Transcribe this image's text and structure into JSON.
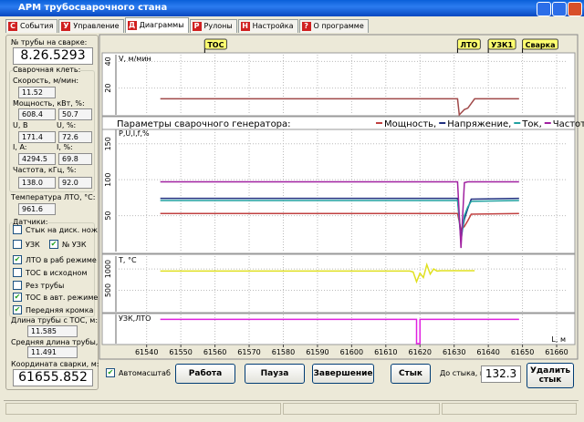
{
  "window": {
    "title": "АРМ трубосварочного стана"
  },
  "tabs": [
    {
      "icon": "С",
      "label": "События"
    },
    {
      "icon": "У",
      "label": "Управление"
    },
    {
      "icon": "Д",
      "label": "Диаграммы",
      "active": true
    },
    {
      "icon": "Р",
      "label": "Рулоны"
    },
    {
      "icon": "Н",
      "label": "Настройка"
    },
    {
      "icon": "?",
      "label": "О программе"
    }
  ],
  "left_panel": {
    "pipe_label": "№ трубы на сварке:",
    "pipe_number": "8.26.5293",
    "stand": {
      "title": "Сварочная клеть:",
      "speed_label": "Скорость, м/мин:",
      "speed": "11.52",
      "power_label": "Мощность, кВт, %:",
      "power": "608.4",
      "power_pct": "50.7",
      "u_label": "U, В",
      "u_pct_label": "U, %:",
      "u": "171.4",
      "u_pct": "72.6",
      "i_label": "I, A:",
      "i_pct_label": "I, %:",
      "i": "4294.5",
      "i_pct": "69.8",
      "freq_label": "Частота, кГц, %:",
      "freq": "138.0",
      "freq_pct": "92.0"
    },
    "temp_label": "Температура ЛТО, °С:",
    "temp": "961.6",
    "sensors": {
      "title": "Датчики:",
      "items": [
        {
          "label": "Стык на диск. нож",
          "checked": false
        },
        {
          "label": "УЗК",
          "checked": false
        },
        {
          "label": "№ УЗК",
          "checked": true
        },
        {
          "label": "ЛТО в раб режиме",
          "checked": true
        },
        {
          "label": "ТОС в исходном",
          "checked": false
        },
        {
          "label": "Рез трубы",
          "checked": false
        },
        {
          "label": "ТОС в авт. режиме",
          "checked": true
        },
        {
          "label": "Передняя кромка",
          "checked": true
        }
      ]
    },
    "length_label": "Длина трубы с ТОС, м:",
    "length": "11.585",
    "avg_label": "Средняя длина трубы, м:",
    "avg": "11.491",
    "coord_label": "Координата сварки, м:",
    "coord": "61655.852"
  },
  "bottom": {
    "autoscale": {
      "label": "Автомасштаб",
      "checked": true
    },
    "buttons": [
      "Работа",
      "Пауза",
      "Завершение",
      "Стык"
    ],
    "distance_label": "До стыка, м:",
    "distance": "132.3",
    "delete_button": "Удалить стык"
  },
  "chart_data": [
    {
      "type": "line",
      "axis_label": "V, м/мин",
      "xlim": [
        61531,
        61664
      ],
      "ylim": [
        0,
        45
      ],
      "yticks": [
        20,
        40
      ],
      "markers": [
        {
          "label": "ТОС",
          "x": 61557
        },
        {
          "label": "ЛТО",
          "x": 61631
        },
        {
          "label": "УЗК1",
          "x": 61640
        },
        {
          "label": "Сварка",
          "x": 61650
        }
      ],
      "series": [
        {
          "color": "#a04848",
          "x": [
            61544,
            61631,
            61631.5,
            61633,
            61634,
            61636,
            61649
          ],
          "values": [
            12,
            12,
            0,
            4,
            5,
            12,
            12
          ]
        }
      ]
    },
    {
      "type": "line",
      "title": "Параметры сварочного генератора:",
      "axis_label": "P,U,I,f,%",
      "xlim": [
        61531,
        61664
      ],
      "ylim": [
        0,
        170
      ],
      "yticks": [
        50,
        100,
        150
      ],
      "series": [
        {
          "name": "Мощность,",
          "color": "#c04040",
          "x": [
            61544,
            61631,
            61632,
            61633,
            61634,
            61635,
            61649
          ],
          "values": [
            53,
            53,
            30,
            35,
            43,
            52,
            53
          ]
        },
        {
          "name": "Напряжение,",
          "color": "#203080",
          "x": [
            61544,
            61631,
            61632,
            61633,
            61634,
            61635,
            61649
          ],
          "values": [
            74,
            74,
            20,
            45,
            60,
            73,
            74
          ]
        },
        {
          "name": "Ток,",
          "color": "#20a0a0",
          "x": [
            61544,
            61631,
            61632,
            61633,
            61634,
            61635,
            61649
          ],
          "values": [
            71,
            71,
            15,
            50,
            62,
            70,
            71
          ]
        },
        {
          "name": "Частота,",
          "color": "#a020a0",
          "x": [
            61544,
            61631,
            61632,
            61633,
            61634,
            61635,
            61649
          ],
          "values": [
            97,
            97,
            5,
            96,
            97,
            97,
            97
          ]
        }
      ]
    },
    {
      "type": "line",
      "axis_label": "T, °C",
      "xlim": [
        61531,
        61664
      ],
      "ylim": [
        0,
        1300
      ],
      "yticks": [
        500,
        1000
      ],
      "series": [
        {
          "color": "#e0e020",
          "x": [
            61544,
            61617,
            61618,
            61619,
            61620,
            61621,
            61622,
            61623,
            61624,
            61625,
            61626,
            61636
          ],
          "values": [
            950,
            950,
            930,
            700,
            900,
            800,
            1100,
            880,
            1000,
            950,
            960,
            960
          ]
        }
      ]
    },
    {
      "type": "line",
      "axis_label": "УЗК,ЛТО",
      "xlim": [
        61531,
        61664
      ],
      "ylim": [
        0,
        1.2
      ],
      "x_label": "L, м",
      "xticks": [
        61540,
        61550,
        61560,
        61570,
        61580,
        61590,
        61600,
        61610,
        61620,
        61630,
        61640,
        61650,
        61660
      ],
      "series": [
        {
          "color": "#e020e0",
          "x": [
            61544,
            61619,
            61619,
            61620,
            61620,
            61649
          ],
          "values": [
            1,
            1,
            0,
            0,
            1,
            1
          ]
        }
      ]
    }
  ]
}
